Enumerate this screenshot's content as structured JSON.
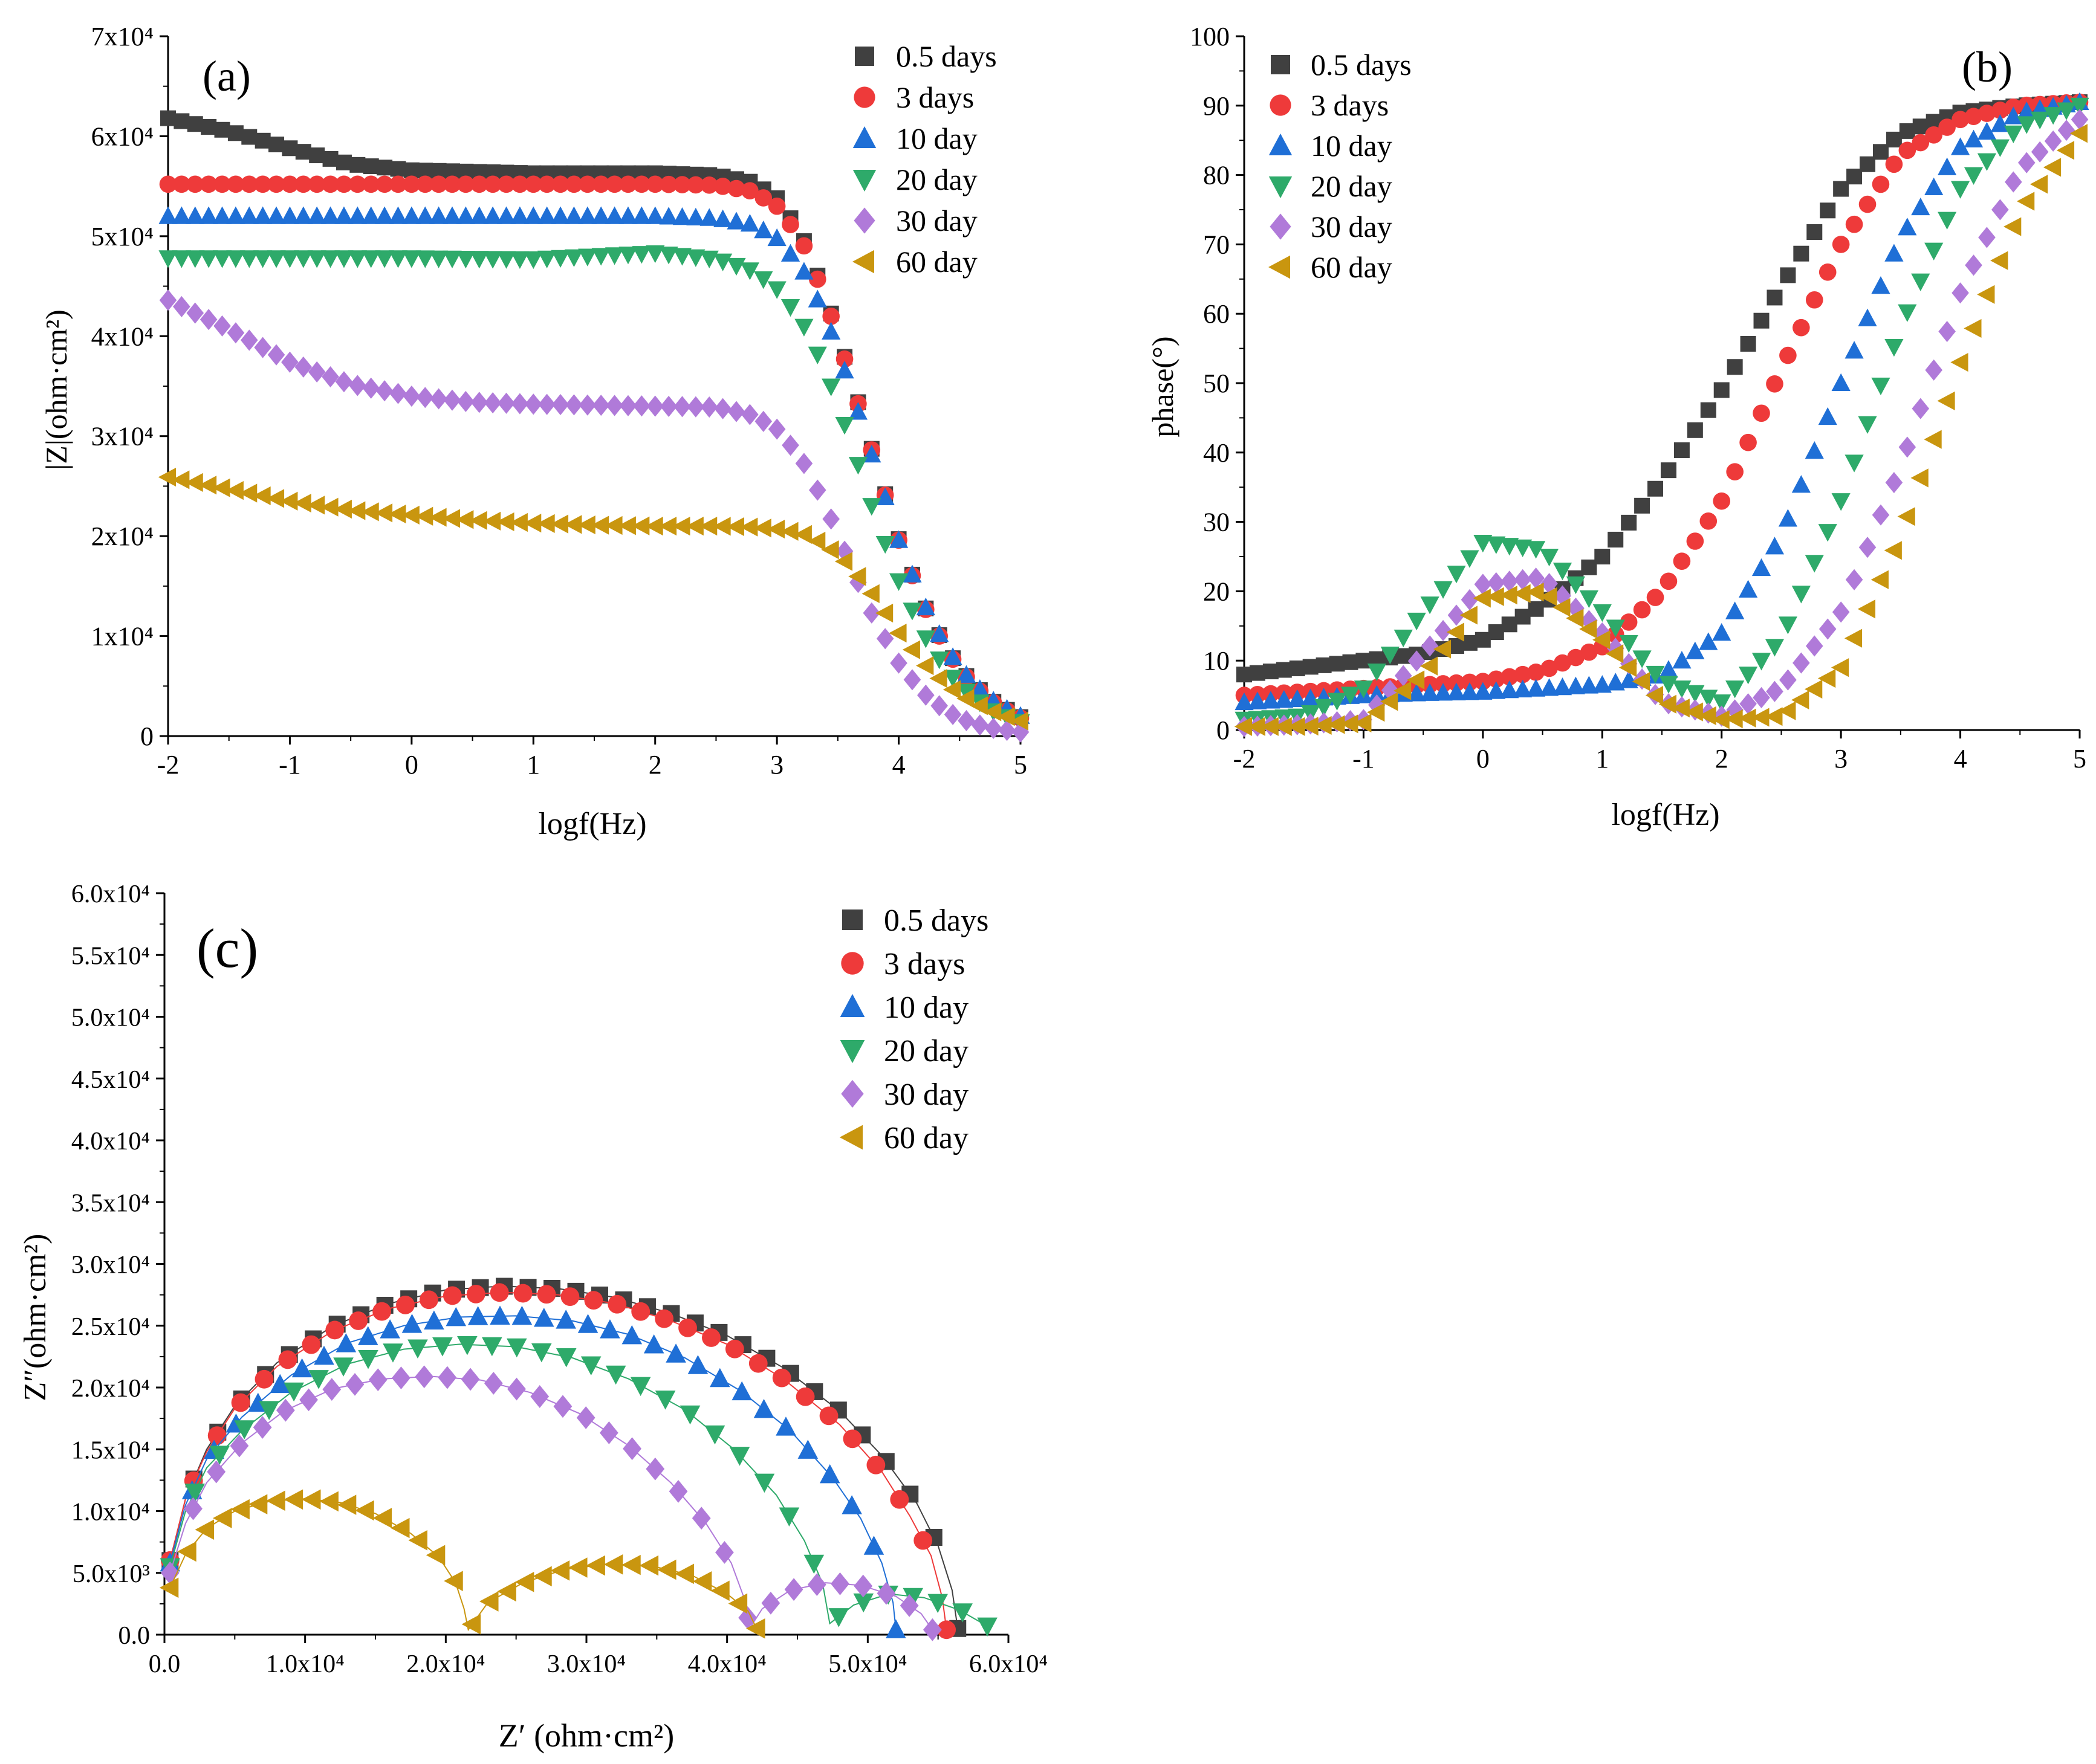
{
  "colors": {
    "0.5 days": "#404040",
    "3 days": "#ee3a3a",
    "10 day": "#1f6fd6",
    "20 day": "#2eaa6a",
    "30 day": "#b07ad9",
    "60 day": "#c9960f"
  },
  "chart_data": [
    {
      "id": "a",
      "panel_label": "(a)",
      "type": "scatter",
      "title": "",
      "xlabel": "logf(Hz)",
      "ylabel": "|Z|(ohm·cm²)",
      "xlim": [
        -2,
        5
      ],
      "ylim": [
        0,
        70000
      ],
      "xticks": [
        -2,
        -1,
        0,
        1,
        2,
        3,
        4,
        5
      ],
      "yticks": [
        0,
        10000,
        20000,
        30000,
        40000,
        50000,
        60000,
        70000
      ],
      "ytick_labels": [
        "0",
        "1x10⁴",
        "2x10⁴",
        "3x10⁴",
        "4x10⁴",
        "5x10⁴",
        "6x10⁴",
        "7x10⁴"
      ],
      "legend_position": "top-right",
      "series": [
        {
          "name": "0.5 days",
          "marker": "square",
          "x": [
            -2,
            -1.5,
            -1,
            -0.5,
            0,
            1,
            2,
            2.5,
            2.8,
            3,
            3.2,
            3.4,
            3.6,
            3.8,
            4,
            4.2,
            4.4,
            4.6,
            4.8,
            5
          ],
          "y": [
            61800,
            60500,
            58800,
            57200,
            56600,
            56300,
            56300,
            56100,
            55400,
            53800,
            50200,
            44000,
            36200,
            27800,
            19700,
            13300,
            8500,
            5300,
            3200,
            1900
          ]
        },
        {
          "name": "3 days",
          "marker": "circle",
          "x": [
            -2,
            -1,
            0,
            1,
            2,
            2.5,
            2.8,
            3,
            3.2,
            3.4,
            3.6,
            3.8,
            4,
            4.2,
            4.4,
            4.6,
            4.8,
            5
          ],
          "y": [
            55200,
            55200,
            55200,
            55200,
            55200,
            55100,
            54500,
            53000,
            49700,
            43700,
            36000,
            27700,
            19600,
            13200,
            8400,
            5200,
            3100,
            1800
          ]
        },
        {
          "name": "10 day",
          "marker": "triangle-up",
          "x": [
            -2,
            -1,
            0,
            1,
            2,
            2.5,
            2.8,
            3,
            3.2,
            3.4,
            3.6,
            3.8,
            4,
            4.2,
            4.4,
            4.6,
            4.8,
            5
          ],
          "y": [
            52000,
            52000,
            52000,
            52000,
            52000,
            51800,
            51200,
            49800,
            47000,
            42000,
            35000,
            27300,
            19600,
            13400,
            8600,
            5400,
            3300,
            2000
          ]
        },
        {
          "name": "20 day",
          "marker": "triangle-down",
          "x": [
            -2,
            -1,
            0,
            1,
            1.5,
            2,
            2.5,
            2.8,
            3,
            3.2,
            3.4,
            3.6,
            3.8,
            4,
            4.2,
            4.4,
            4.6,
            4.8,
            5
          ],
          "y": [
            47800,
            47800,
            47800,
            47700,
            48000,
            48300,
            47700,
            46500,
            44700,
            41500,
            36500,
            29600,
            22200,
            15500,
            10200,
            6400,
            3900,
            2300,
            1400
          ]
        },
        {
          "name": "30 day",
          "marker": "diamond",
          "x": [
            -2,
            -1.5,
            -1,
            -0.5,
            0,
            0.5,
            1,
            1.5,
            2,
            2.5,
            2.8,
            3,
            3.2,
            3.4,
            3.6,
            3.8,
            4,
            4.2,
            4.4,
            4.6,
            4.8,
            5
          ],
          "y": [
            43600,
            40700,
            37400,
            35200,
            34000,
            33400,
            33200,
            33100,
            33000,
            32900,
            32100,
            30700,
            27800,
            23000,
            17200,
            11700,
            7300,
            4300,
            2400,
            1300,
            700,
            400
          ]
        },
        {
          "name": "60 day",
          "marker": "triangle-left",
          "x": [
            -2,
            -1.5,
            -1,
            -0.5,
            0,
            0.5,
            1,
            1.5,
            2,
            2.5,
            2.8,
            3,
            3.2,
            3.4,
            3.6,
            3.8,
            4,
            4.2,
            4.4,
            4.6,
            4.8,
            5
          ],
          "y": [
            25900,
            24700,
            23500,
            22600,
            22100,
            21600,
            21300,
            21100,
            21000,
            21000,
            20900,
            20700,
            20300,
            19100,
            17000,
            13900,
            10300,
            7300,
            5000,
            3400,
            2300,
            1500
          ]
        }
      ]
    },
    {
      "id": "b",
      "panel_label": "(b)",
      "type": "scatter",
      "title": "",
      "xlabel": "logf(Hz)",
      "ylabel": "phase(°)",
      "xlim": [
        -2,
        5
      ],
      "ylim": [
        0,
        100
      ],
      "xticks": [
        -2,
        -1,
        0,
        1,
        2,
        3,
        4,
        5
      ],
      "yticks": [
        0,
        10,
        20,
        30,
        40,
        50,
        60,
        70,
        80,
        90,
        100
      ],
      "ytick_labels": [
        "0",
        "10",
        "20",
        "30",
        "40",
        "50",
        "60",
        "70",
        "80",
        "90",
        "100"
      ],
      "legend_position": "top-left",
      "series": [
        {
          "name": "0.5 days",
          "marker": "square",
          "x": [
            -2,
            -1.5,
            -1,
            -0.5,
            0,
            0.5,
            1,
            1.5,
            2,
            2.5,
            3,
            3.5,
            4,
            4.5,
            5
          ],
          "y": [
            8,
            9,
            10,
            11,
            13,
            18,
            25,
            36,
            49,
            64,
            78,
            86,
            89,
            90,
            90.5
          ]
        },
        {
          "name": "3 days",
          "marker": "circle",
          "x": [
            -2,
            -1.5,
            -1,
            -0.5,
            0,
            0.5,
            1,
            1.5,
            2,
            2.5,
            3,
            3.5,
            4,
            4.5,
            5
          ],
          "y": [
            5,
            5.5,
            6,
            6.5,
            7,
            8.5,
            12,
            20,
            33,
            52,
            70,
            83,
            88,
            90,
            90.5
          ]
        },
        {
          "name": "10 day",
          "marker": "triangle-up",
          "x": [
            -2,
            -1.5,
            -1,
            -0.5,
            0,
            0.5,
            1,
            1.5,
            2,
            2.5,
            3,
            3.5,
            4,
            4.5,
            5
          ],
          "y": [
            4,
            4.5,
            5,
            5.3,
            5.5,
            6,
            6.5,
            8,
            14,
            28,
            50,
            71,
            84,
            89,
            90.5
          ]
        },
        {
          "name": "20 day",
          "marker": "triangle-down",
          "x": [
            -2,
            -1.5,
            -1,
            -0.5,
            0,
            0.5,
            1,
            1.5,
            2,
            2.5,
            3,
            3.5,
            4,
            4.5,
            5
          ],
          "y": [
            1.5,
            2,
            6,
            17,
            27,
            26,
            17,
            7,
            4,
            13,
            33,
            58,
            78,
            87,
            90
          ]
        },
        {
          "name": "30 day",
          "marker": "diamond",
          "x": [
            -2,
            -1.5,
            -1,
            -0.5,
            0,
            0.5,
            1,
            1.5,
            2,
            2.5,
            3,
            3.5,
            4,
            4.5,
            5
          ],
          "y": [
            0.5,
            0.8,
            1.5,
            11,
            21,
            22,
            14,
            4,
            2,
            6,
            17,
            38,
            63,
            81,
            88
          ]
        },
        {
          "name": "60 day",
          "marker": "triangle-left",
          "x": [
            -2,
            -1.5,
            -1,
            -0.5,
            0,
            0.5,
            1,
            1.5,
            2,
            2.5,
            3,
            3.5,
            4,
            4.5,
            5
          ],
          "y": [
            0.5,
            0.5,
            1,
            8,
            19,
            20,
            13,
            4,
            1.5,
            2,
            9,
            28,
            53,
            75,
            86
          ]
        }
      ]
    },
    {
      "id": "c",
      "panel_label": "(c)",
      "type": "scatter",
      "title": "",
      "xlabel": "Z′ (ohm·cm²)",
      "ylabel": "Z″(ohm·cm²)",
      "xlim": [
        0,
        60000
      ],
      "ylim": [
        0,
        60000
      ],
      "xticks": [
        0,
        10000,
        20000,
        30000,
        40000,
        50000,
        60000
      ],
      "xtick_labels": [
        "0.0",
        "1.0x10⁴",
        "2.0x10⁴",
        "3.0x10⁴",
        "4.0x10⁴",
        "5.0x10⁴",
        "6.0x10⁴"
      ],
      "yticks": [
        0,
        5000,
        10000,
        15000,
        20000,
        25000,
        30000,
        35000,
        40000,
        45000,
        50000,
        55000,
        60000
      ],
      "ytick_labels": [
        "0.0",
        "5.0x10³",
        "1.0x10⁴",
        "1.5x10⁴",
        "2.0x10⁴",
        "2.5x10⁴",
        "3.0x10⁴",
        "3.5x10⁴",
        "4.0x10⁴",
        "4.5x10⁴",
        "5.0x10⁴",
        "5.5x10⁴",
        "6.0x10⁴"
      ],
      "legend_position": "top-right",
      "series": [
        {
          "name": "0.5 days",
          "marker": "square",
          "x": [
            400,
            1500,
            3000,
            5000,
            8000,
            12000,
            16000,
            20000,
            24000,
            28000,
            32000,
            36000,
            40000,
            44000,
            48000,
            51000,
            53500,
            55000,
            56000,
            56400
          ],
          "y": [
            6000,
            11000,
            15000,
            18500,
            22000,
            25000,
            26800,
            27900,
            28200,
            28000,
            27300,
            26000,
            24200,
            21600,
            18100,
            14500,
            10600,
            7200,
            3600,
            500
          ]
        },
        {
          "name": "3 days",
          "marker": "circle",
          "x": [
            400,
            1500,
            3000,
            5000,
            8000,
            12000,
            16000,
            20000,
            24000,
            28000,
            32000,
            36000,
            40000,
            44000,
            48000,
            51000,
            53000,
            54500,
            55300,
            55600
          ],
          "y": [
            6000,
            11000,
            14800,
            18300,
            21700,
            24600,
            26400,
            27400,
            27700,
            27500,
            26800,
            25400,
            23500,
            20700,
            17000,
            13200,
            9600,
            6400,
            3000,
            400
          ]
        },
        {
          "name": "10 day",
          "marker": "triangle-up",
          "x": [
            400,
            1500,
            3000,
            5500,
            9000,
            13000,
            17000,
            21000,
            25000,
            29000,
            33000,
            37000,
            41000,
            44500,
            47500,
            49500,
            51000,
            51800,
            52000
          ],
          "y": [
            5800,
            10500,
            14200,
            17600,
            21000,
            23600,
            25000,
            25700,
            25800,
            25400,
            24300,
            22400,
            19700,
            16500,
            12700,
            9400,
            5800,
            2600,
            400
          ]
        },
        {
          "name": "20 day",
          "marker": "triangle-down",
          "x": [
            400,
            1500,
            3000,
            5500,
            9000,
            13000,
            17000,
            21000,
            25000,
            29000,
            33000,
            37000,
            40500,
            43500,
            45500,
            46800,
            47300,
            49000,
            51500,
            54000,
            56500,
            58500
          ],
          "y": [
            5500,
            10000,
            13500,
            16500,
            19600,
            21900,
            23100,
            23500,
            23300,
            22400,
            20700,
            18200,
            15000,
            11300,
            7600,
            4100,
            900,
            2400,
            3300,
            3000,
            2000,
            700
          ]
        },
        {
          "name": "30 day",
          "marker": "diamond",
          "x": [
            400,
            1500,
            3000,
            5500,
            8500,
            12000,
            15500,
            19000,
            22500,
            26000,
            29500,
            33000,
            36000,
            38500,
            40300,
            41200,
            41600,
            42500,
            44500,
            47000,
            49500,
            52000,
            53800,
            54600
          ],
          "y": [
            5000,
            9000,
            12300,
            15500,
            18100,
            19900,
            20700,
            20900,
            20600,
            19600,
            17900,
            15300,
            12300,
            9000,
            5800,
            3000,
            500,
            2100,
            3600,
            4200,
            4000,
            3100,
            1700,
            400
          ]
        },
        {
          "name": "60 day",
          "marker": "triangle-left",
          "x": [
            400,
            1500,
            3000,
            5000,
            7500,
            10000,
            12500,
            15000,
            17500,
            19500,
            20700,
            21300,
            21600,
            23000,
            25500,
            28500,
            31500,
            34500,
            37500,
            40000,
            41500,
            42100
          ],
          "y": [
            3800,
            6500,
            8600,
            10000,
            10800,
            11000,
            10700,
            9800,
            8200,
            6300,
            4200,
            2100,
            400,
            2600,
            4200,
            5300,
            5700,
            5600,
            4800,
            3300,
            1900,
            500
          ]
        }
      ]
    }
  ]
}
